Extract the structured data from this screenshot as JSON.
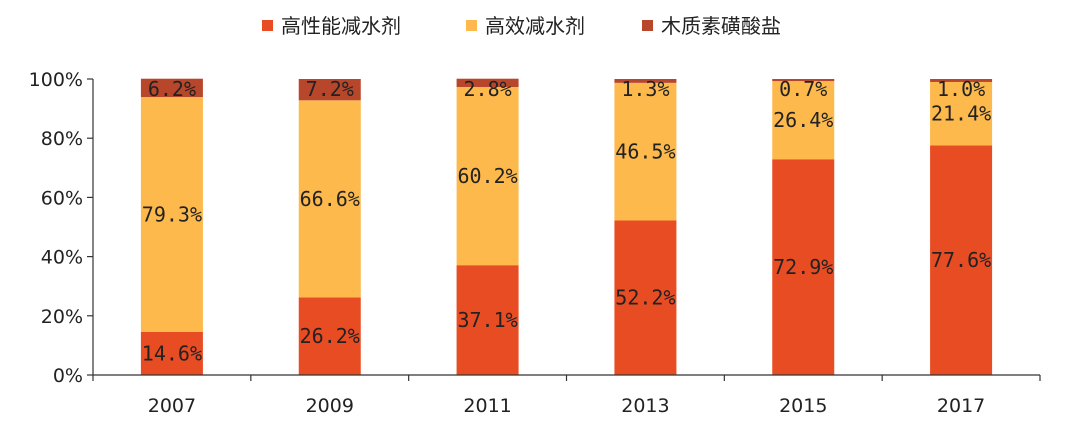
{
  "chart_data": {
    "type": "bar",
    "stacked": true,
    "categories": [
      "2007",
      "2009",
      "2011",
      "2013",
      "2015",
      "2017"
    ],
    "series": [
      {
        "name": "高性能减水剂",
        "color": "#E84C22",
        "values": [
          14.6,
          26.2,
          37.1,
          52.2,
          72.9,
          77.6
        ]
      },
      {
        "name": "高效减水剂",
        "color": "#FDB94C",
        "values": [
          79.3,
          66.6,
          60.2,
          46.5,
          26.4,
          21.4
        ]
      },
      {
        "name": "木质素磺酸盐",
        "color": "#B8462A",
        "values": [
          6.2,
          7.2,
          2.8,
          1.3,
          0.7,
          1.0
        ]
      }
    ],
    "data_labels": [
      [
        "14.6%",
        "26.2%",
        "37.1%",
        "52.2%",
        "72.9%",
        "77.6%"
      ],
      [
        "79.3%",
        "66.6%",
        "60.2%",
        "46.5%",
        "26.4%",
        "21.4%"
      ],
      [
        "6.2%",
        "7.2%",
        "2.8%",
        "1.3%",
        "0.7%",
        "1.0%"
      ]
    ],
    "y_ticks": [
      "0%",
      "20%",
      "40%",
      "60%",
      "80%",
      "100%"
    ],
    "ylim": [
      0,
      100
    ],
    "legend_position": "top"
  }
}
